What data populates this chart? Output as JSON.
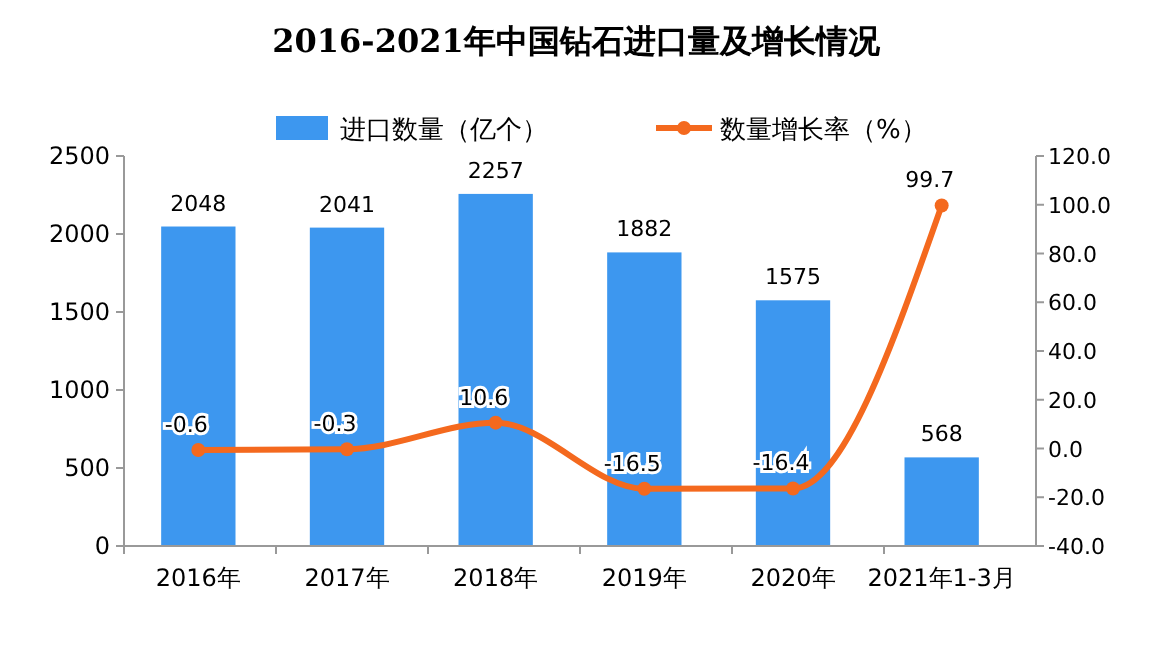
{
  "chart_data": {
    "type": "bar",
    "title": "2016-2021年中国钻石进口量及增长情况",
    "categories": [
      "2016年",
      "2017年",
      "2018年",
      "2019年",
      "2020年",
      "2021年1-3月"
    ],
    "series": [
      {
        "name": "进口数量（亿个）",
        "color": "#3d97ef",
        "values": [
          2048,
          2041,
          2257,
          1882,
          1575,
          568
        ]
      },
      {
        "name": "数量增长率（%）",
        "type": "line",
        "axis": "y2",
        "color": "#f4691e",
        "values": [
          -0.6,
          -0.3,
          10.6,
          -16.5,
          -16.4,
          99.7
        ]
      }
    ],
    "ylim": [
      0,
      2500
    ],
    "yticks": [
      0,
      500,
      1000,
      1500,
      2000,
      2500
    ],
    "y2lim": [
      -40,
      120
    ],
    "y2ticks": [
      {
        "value": -40,
        "label": "-40.0"
      },
      {
        "value": -20,
        "label": "-20.0"
      },
      {
        "value": 0,
        "label": "0.0"
      },
      {
        "value": 20,
        "label": "20.0"
      },
      {
        "value": 40,
        "label": "40.0"
      },
      {
        "value": 60,
        "label": "60.0"
      },
      {
        "value": 80,
        "label": "80.0"
      },
      {
        "value": 100,
        "label": "100.0"
      },
      {
        "value": 120,
        "label": "120.0"
      }
    ],
    "marker": "circle",
    "data_labels": true,
    "grid": false,
    "legend": "top"
  }
}
